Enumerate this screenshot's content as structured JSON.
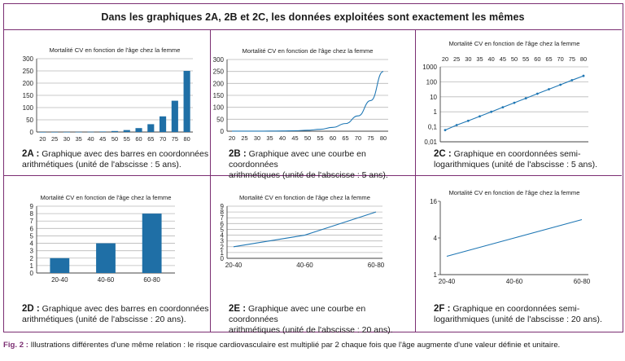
{
  "header": {
    "title": "Dans les graphiques 2A, 2B et 2C, les données exploitées sont exactement les mêmes"
  },
  "footnote": {
    "label": "Fig. 2 :",
    "text": " Illustrations différentes d'une même relation : le risque cardiovasculaire est multiplié par 2 chaque fois que l'âge augmente d'une valeur définie et unitaire."
  },
  "colors": {
    "accent": "#7b2e72",
    "series": "#1f77b4",
    "bar": "#1f6fa6",
    "grid": "#b9b9b9"
  },
  "chart_data": [
    {
      "id": "2A",
      "type": "bar",
      "title": "Mortalité CV en fonction de l'âge chez la femme",
      "categories": [
        "20",
        "25",
        "30",
        "35",
        "40",
        "45",
        "50",
        "55",
        "60",
        "65",
        "70",
        "75",
        "80"
      ],
      "values": [
        0.06,
        0.13,
        0.25,
        0.5,
        1,
        2,
        4,
        8,
        16,
        32,
        64,
        128,
        250
      ],
      "yticks": [
        0,
        50,
        100,
        150,
        200,
        250,
        300
      ],
      "ylim": [
        0,
        300
      ],
      "grid": true,
      "caption_label": "2A :",
      "caption_lines": [
        "Graphique avec des barres en coordonnées",
        "arithmétiques (unité de l'abscisse : 5 ans)."
      ]
    },
    {
      "id": "2B",
      "type": "line",
      "title": "Mortalité CV en fonction de l'âge chez la femme",
      "x": [
        20,
        25,
        30,
        35,
        40,
        45,
        50,
        55,
        60,
        65,
        70,
        75,
        80
      ],
      "y": [
        0.06,
        0.13,
        0.25,
        0.5,
        1,
        2,
        4,
        8,
        16,
        32,
        64,
        128,
        250
      ],
      "xticks": [
        "20",
        "25",
        "30",
        "35",
        "40",
        "45",
        "50",
        "55",
        "60",
        "65",
        "70",
        "75",
        "80"
      ],
      "yticks": [
        0,
        50,
        100,
        150,
        200,
        250,
        300
      ],
      "ylim": [
        0,
        300
      ],
      "grid": true,
      "caption_label": "2B :",
      "caption_lines": [
        "Graphique avec une courbe en coordonnées",
        "arithmétiques (unité de l'abscisse : 5 ans)."
      ]
    },
    {
      "id": "2C",
      "type": "line",
      "yscale": "log",
      "xaxis_position": "top",
      "title": "Mortalité CV en fonction de l'âge chez la femme",
      "x": [
        20,
        25,
        30,
        35,
        40,
        45,
        50,
        55,
        60,
        65,
        70,
        75,
        80
      ],
      "y": [
        0.06,
        0.13,
        0.25,
        0.5,
        1,
        2,
        4,
        8,
        16,
        32,
        64,
        128,
        250
      ],
      "xticks": [
        "20",
        "25",
        "30",
        "35",
        "40",
        "45",
        "50",
        "55",
        "60",
        "65",
        "70",
        "75",
        "80"
      ],
      "ytick_labels": [
        "1000",
        "100",
        "10",
        "1",
        "0,1",
        "0,01"
      ],
      "ytick_values": [
        1000,
        100,
        10,
        1,
        0.1,
        0.01
      ],
      "ylim": [
        0.01,
        1000
      ],
      "grid": true,
      "caption_label": "2C :",
      "caption_lines": [
        "Graphique en coordonnées semi-",
        "logarithmiques (unité de l'abscisse : 5 ans)."
      ]
    },
    {
      "id": "2D",
      "type": "bar",
      "title": "Mortalité CV en fonction de l'âge chez la femme",
      "categories": [
        "20-40",
        "40-60",
        "60-80"
      ],
      "values": [
        2,
        4,
        8
      ],
      "yticks": [
        0,
        1,
        2,
        3,
        4,
        5,
        6,
        7,
        8,
        9
      ],
      "ylim": [
        0,
        9
      ],
      "grid": true,
      "caption_label": "2D :",
      "caption_lines": [
        "Graphique avec des barres en coordonnées",
        "arithmétiques (unité de l'abscisse : 20 ans)."
      ]
    },
    {
      "id": "2E",
      "type": "line",
      "title": "Mortalité CV en fonction de l'âge chez la femme",
      "categories": [
        "20-40",
        "40-60",
        "60-80"
      ],
      "values": [
        2,
        4,
        8
      ],
      "yticks": [
        0,
        1,
        2,
        3,
        4,
        5,
        6,
        7,
        8,
        9
      ],
      "ylim": [
        0,
        9
      ],
      "grid": true,
      "caption_label": "2E :",
      "caption_lines": [
        "Graphique avec une courbe en coordonnées",
        "arithmétiques (unité de l'abscisse : 20 ans)."
      ]
    },
    {
      "id": "2F",
      "type": "line",
      "yscale": "log",
      "title": "Mortalité CV en fonction de l'âge chez la femme",
      "categories": [
        "20-40",
        "40-60",
        "60-80"
      ],
      "values": [
        2,
        4,
        8
      ],
      "ytick_labels": [
        "16",
        "4",
        "1"
      ],
      "ytick_values": [
        16,
        4,
        1
      ],
      "ylim": [
        1,
        16
      ],
      "grid": false,
      "caption_label": "2F :",
      "caption_lines": [
        "Graphique en coordonnées semi-",
        "logarithmiques (unité de l'abscisse : 20 ans)."
      ]
    }
  ]
}
